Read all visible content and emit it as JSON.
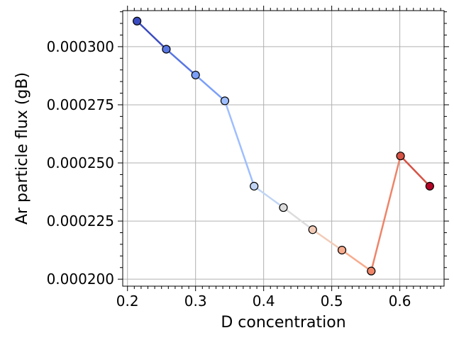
{
  "chart_data": {
    "type": "line",
    "xlabel": "D concentration",
    "ylabel": "Ar particle flux (gB)",
    "xlim": [
      0.193,
      0.665
    ],
    "ylim": [
      0.000197,
      0.0003155
    ],
    "grid": true,
    "colormap": "coolwarm",
    "x_ticks": [
      0.2,
      0.3,
      0.4,
      0.5,
      0.6
    ],
    "x_tick_labels": [
      "0.2",
      "0.3",
      "0.4",
      "0.5",
      "0.6"
    ],
    "y_ticks": [
      0.0002,
      0.000225,
      0.00025,
      0.000275,
      0.0003
    ],
    "y_tick_labels": [
      "0.000200",
      "0.000225",
      "0.000250",
      "0.000275",
      "0.000300"
    ],
    "points": [
      {
        "x": 0.214,
        "y": 0.000311,
        "color": "#3b4cc0"
      },
      {
        "x": 0.257,
        "y": 0.0002989,
        "color": "#5977e3"
      },
      {
        "x": 0.3,
        "y": 0.0002878,
        "color": "#7b9ff9"
      },
      {
        "x": 0.343,
        "y": 0.0002767,
        "color": "#9ebeff"
      },
      {
        "x": 0.386,
        "y": 0.00024,
        "color": "#c0d4f5"
      },
      {
        "x": 0.429,
        "y": 0.0002308,
        "color": "#dddcdc"
      },
      {
        "x": 0.472,
        "y": 0.0002213,
        "color": "#f2cbb7"
      },
      {
        "x": 0.515,
        "y": 0.0002125,
        "color": "#f7ac8e"
      },
      {
        "x": 0.558,
        "y": 0.0002035,
        "color": "#ee8468"
      },
      {
        "x": 0.601,
        "y": 0.000253,
        "color": "#d65244"
      },
      {
        "x": 0.644,
        "y": 0.00024,
        "color": "#b40426"
      }
    ]
  }
}
